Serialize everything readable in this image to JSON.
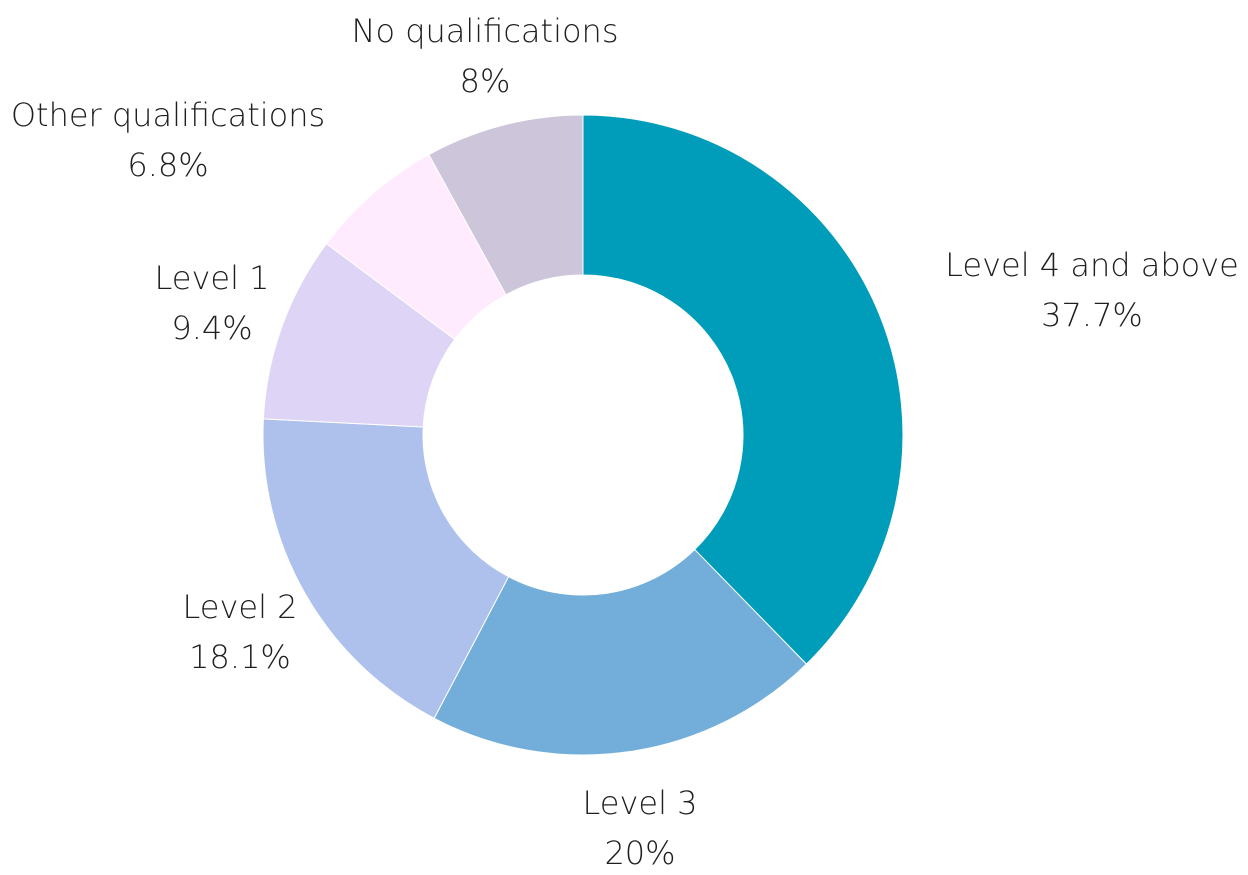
{
  "chart_data": {
    "type": "pie",
    "variant": "donut",
    "legend": "none",
    "slices": [
      {
        "name": "Level 4 and above",
        "value": 37.7,
        "label": "37.7%",
        "color": "#009DBB"
      },
      {
        "name": "Level 3",
        "value": 20,
        "label": "20%",
        "color": "#72AED9"
      },
      {
        "name": "Level 2",
        "value": 18.1,
        "label": "18.1%",
        "color": "#AEC0EC"
      },
      {
        "name": "Level 1",
        "value": 9.4,
        "label": "9.4%",
        "color": "#DED4F5"
      },
      {
        "name": "Other qualifications",
        "value": 6.8,
        "label": "6.8%",
        "color": "#FFEBFD"
      },
      {
        "name": "No qualifications",
        "value": 8,
        "label": "8%",
        "color": "#CDC6DA"
      }
    ]
  }
}
